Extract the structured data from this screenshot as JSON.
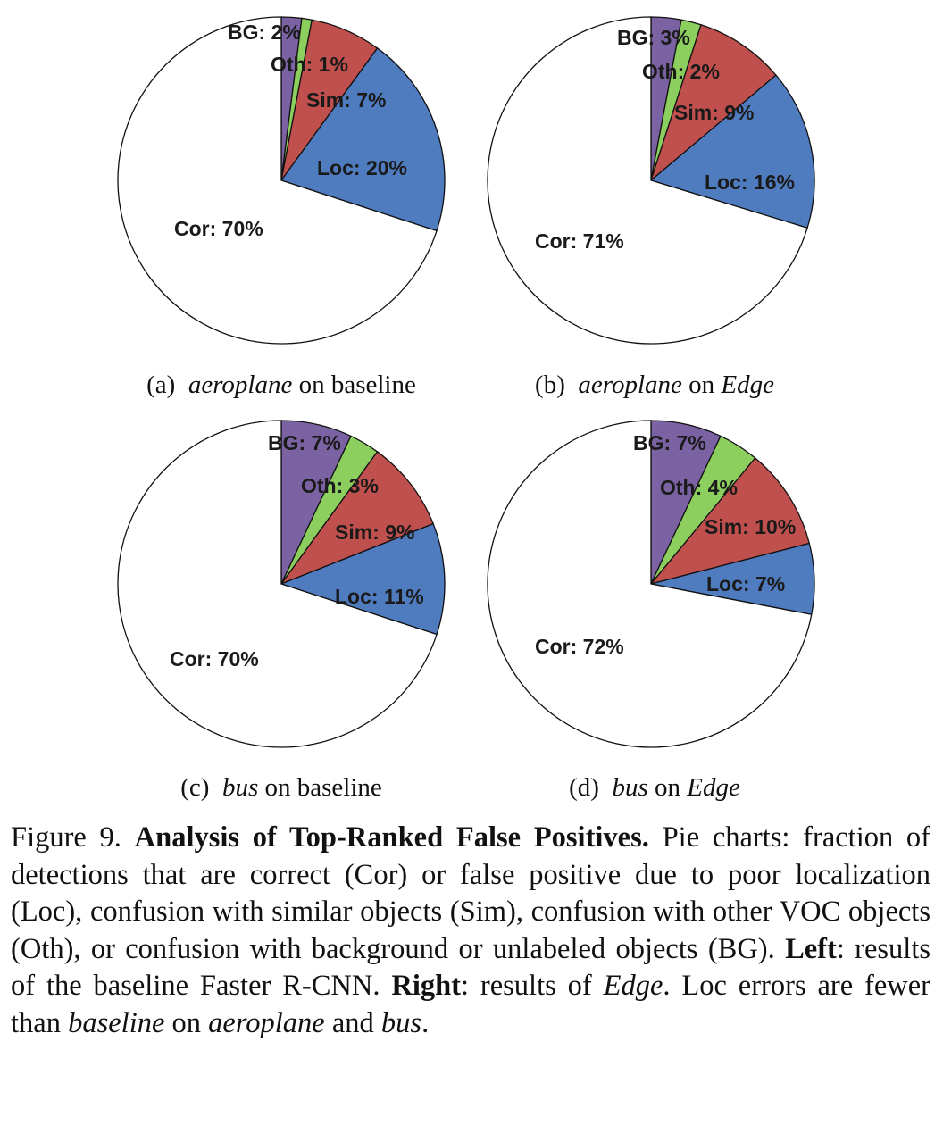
{
  "colors": {
    "Cor": "#ffffff",
    "Loc": "#4f7bbf",
    "Sim": "#c0504d",
    "Oth": "#8ccf5e",
    "BG": "#7b62a3"
  },
  "chart_data": [
    {
      "type": "pie",
      "subcaption": {
        "letter": "(a)",
        "object": "aeroplane",
        "on": "on",
        "method": "baseline",
        "method_italic": false
      },
      "slices": [
        {
          "label": "BG: 2%",
          "value": 2,
          "key": "BG"
        },
        {
          "label": "Oth: 1%",
          "value": 1,
          "key": "Oth"
        },
        {
          "label": "Sim: 7%",
          "value": 7,
          "key": "Sim"
        },
        {
          "label": "Loc: 20%",
          "value": 20,
          "key": "Loc"
        },
        {
          "label": "Cor: 70%",
          "value": 70,
          "key": "Cor"
        }
      ]
    },
    {
      "type": "pie",
      "subcaption": {
        "letter": "(b)",
        "object": "aeroplane",
        "on": "on",
        "method": "Edge",
        "method_italic": true
      },
      "slices": [
        {
          "label": "BG: 3%",
          "value": 3,
          "key": "BG"
        },
        {
          "label": "Oth: 2%",
          "value": 2,
          "key": "Oth"
        },
        {
          "label": "Sim: 9%",
          "value": 9,
          "key": "Sim"
        },
        {
          "label": "Loc: 16%",
          "value": 16,
          "key": "Loc"
        },
        {
          "label": "Cor: 71%",
          "value": 71,
          "key": "Cor"
        }
      ]
    },
    {
      "type": "pie",
      "subcaption": {
        "letter": "(c)",
        "object": "bus",
        "on": "on",
        "method": "baseline",
        "method_italic": false
      },
      "slices": [
        {
          "label": "BG: 7%",
          "value": 7,
          "key": "BG"
        },
        {
          "label": "Oth: 3%",
          "value": 3,
          "key": "Oth"
        },
        {
          "label": "Sim: 9%",
          "value": 9,
          "key": "Sim"
        },
        {
          "label": "Loc: 11%",
          "value": 11,
          "key": "Loc"
        },
        {
          "label": "Cor: 70%",
          "value": 70,
          "key": "Cor"
        }
      ]
    },
    {
      "type": "pie",
      "subcaption": {
        "letter": "(d)",
        "object": "bus",
        "on": "on",
        "method": "Edge",
        "method_italic": true
      },
      "slices": [
        {
          "label": "BG: 7%",
          "value": 7,
          "key": "BG"
        },
        {
          "label": "Oth: 4%",
          "value": 4,
          "key": "Oth"
        },
        {
          "label": "Sim: 10%",
          "value": 10,
          "key": "Sim"
        },
        {
          "label": "Loc: 7%",
          "value": 7,
          "key": "Loc"
        },
        {
          "label": "Cor: 72%",
          "value": 72,
          "key": "Cor"
        }
      ]
    }
  ],
  "caption": {
    "figure_label": "Figure 9.",
    "title": "Analysis of Top-Ranked False Positives.",
    "text1": "Pie charts: fraction of detections that are correct (Cor) or false positive due to poor localization (Loc), confusion with similar objects (Sim), confusion with other VOC objects (Oth), or confusion with background or unlabeled objects (BG).",
    "left_label": "Left",
    "text2": ": results of the baseline Faster R-CNN.",
    "right_label": "Right",
    "text3": ": results of",
    "edge": "Edge",
    "text4": ". Loc errors are fewer than",
    "baseline": "baseline",
    "text5": "on",
    "aeroplane": "aeroplane",
    "text6": "and",
    "bus": "bus",
    "text7": "."
  }
}
